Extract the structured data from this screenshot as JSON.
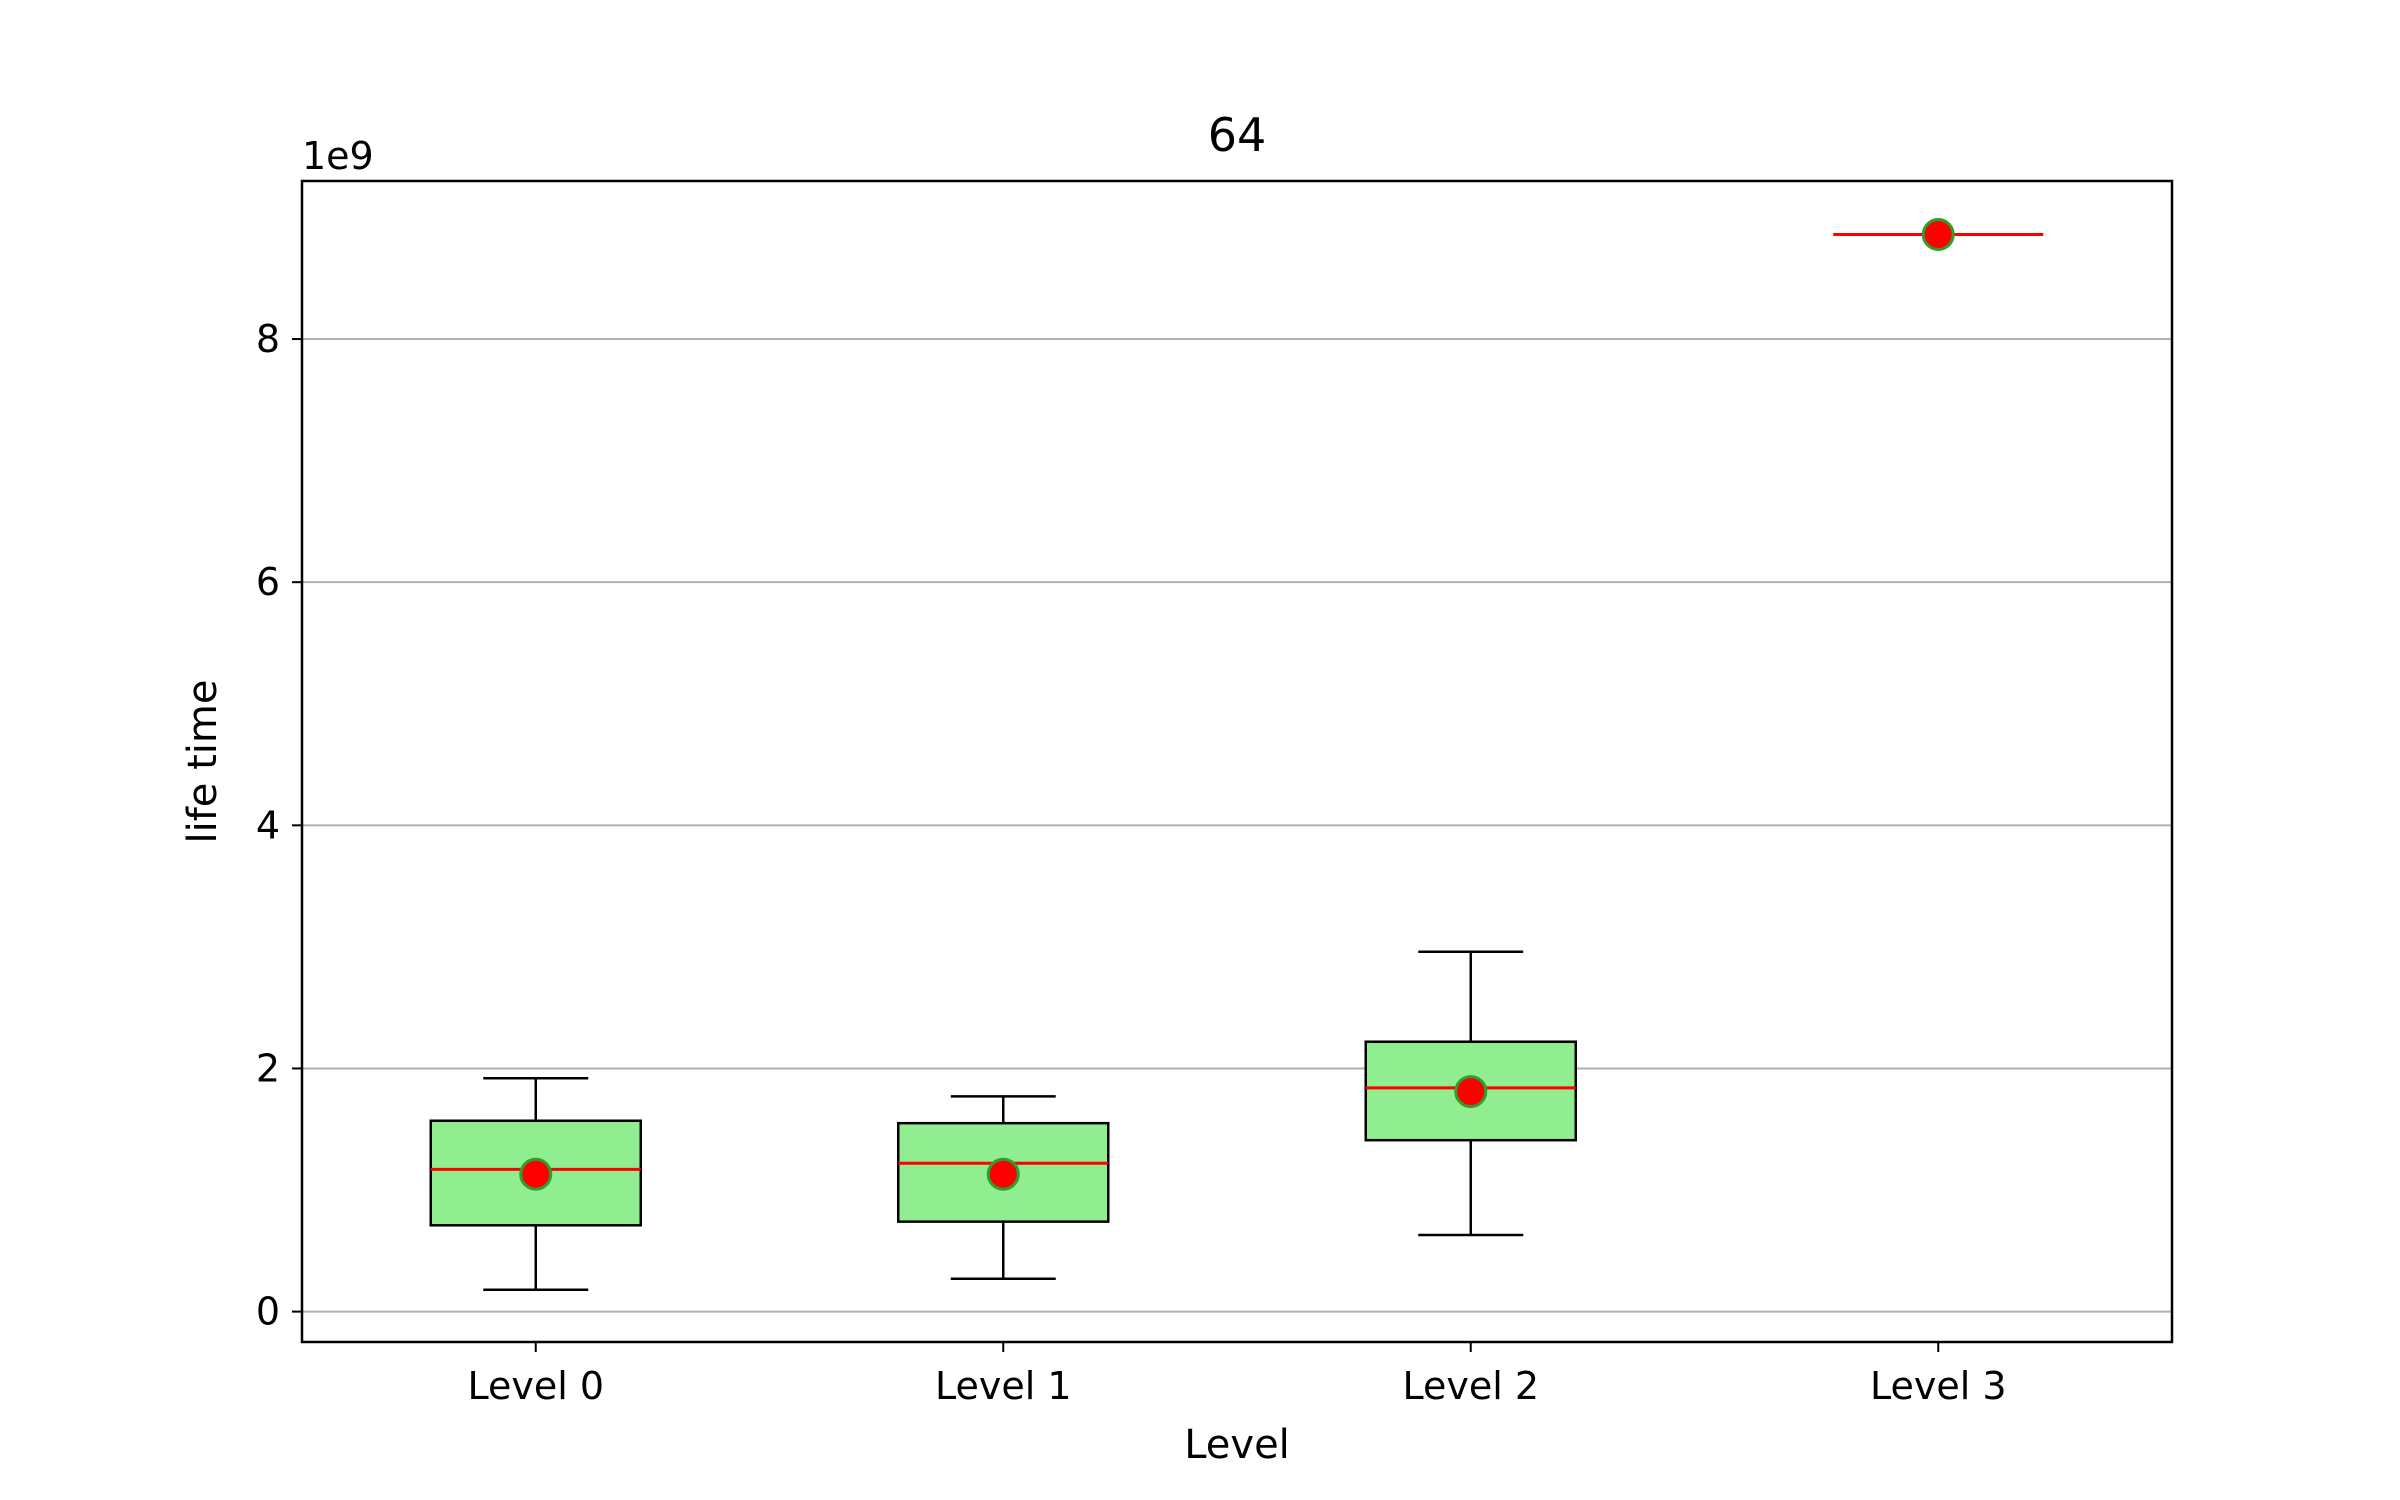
{
  "chart_data": {
    "type": "box",
    "title": "64",
    "xlabel": "Level",
    "ylabel": "life time",
    "y_offset_text": "1e9",
    "y_scale": 1000000000,
    "ylim": [
      -0.25,
      9.3
    ],
    "yticks": [
      0,
      2,
      4,
      6,
      8
    ],
    "grid": "y",
    "categories": [
      "Level 0",
      "Level 1",
      "Level 2",
      "Level 3"
    ],
    "boxes": [
      {
        "whisker_low": 0.18,
        "q1": 0.71,
        "median": 1.17,
        "q3": 1.57,
        "whisker_high": 1.92,
        "mean": 1.13
      },
      {
        "whisker_low": 0.27,
        "q1": 0.74,
        "median": 1.22,
        "q3": 1.55,
        "whisker_high": 1.77,
        "mean": 1.13
      },
      {
        "whisker_low": 0.63,
        "q1": 1.41,
        "median": 1.84,
        "q3": 2.22,
        "whisker_high": 2.96,
        "mean": 1.81
      },
      {
        "whisker_low": 8.86,
        "q1": 8.86,
        "median": 8.86,
        "q3": 8.86,
        "whisker_high": 8.86,
        "mean": 8.86
      }
    ],
    "colors": {
      "box_fill": "#90ee90",
      "box_edge": "#000000",
      "median": "#ff0000",
      "mean_fill": "#ff0000",
      "mean_edge": "#2ca02c",
      "grid": "#b0b0b0"
    }
  }
}
